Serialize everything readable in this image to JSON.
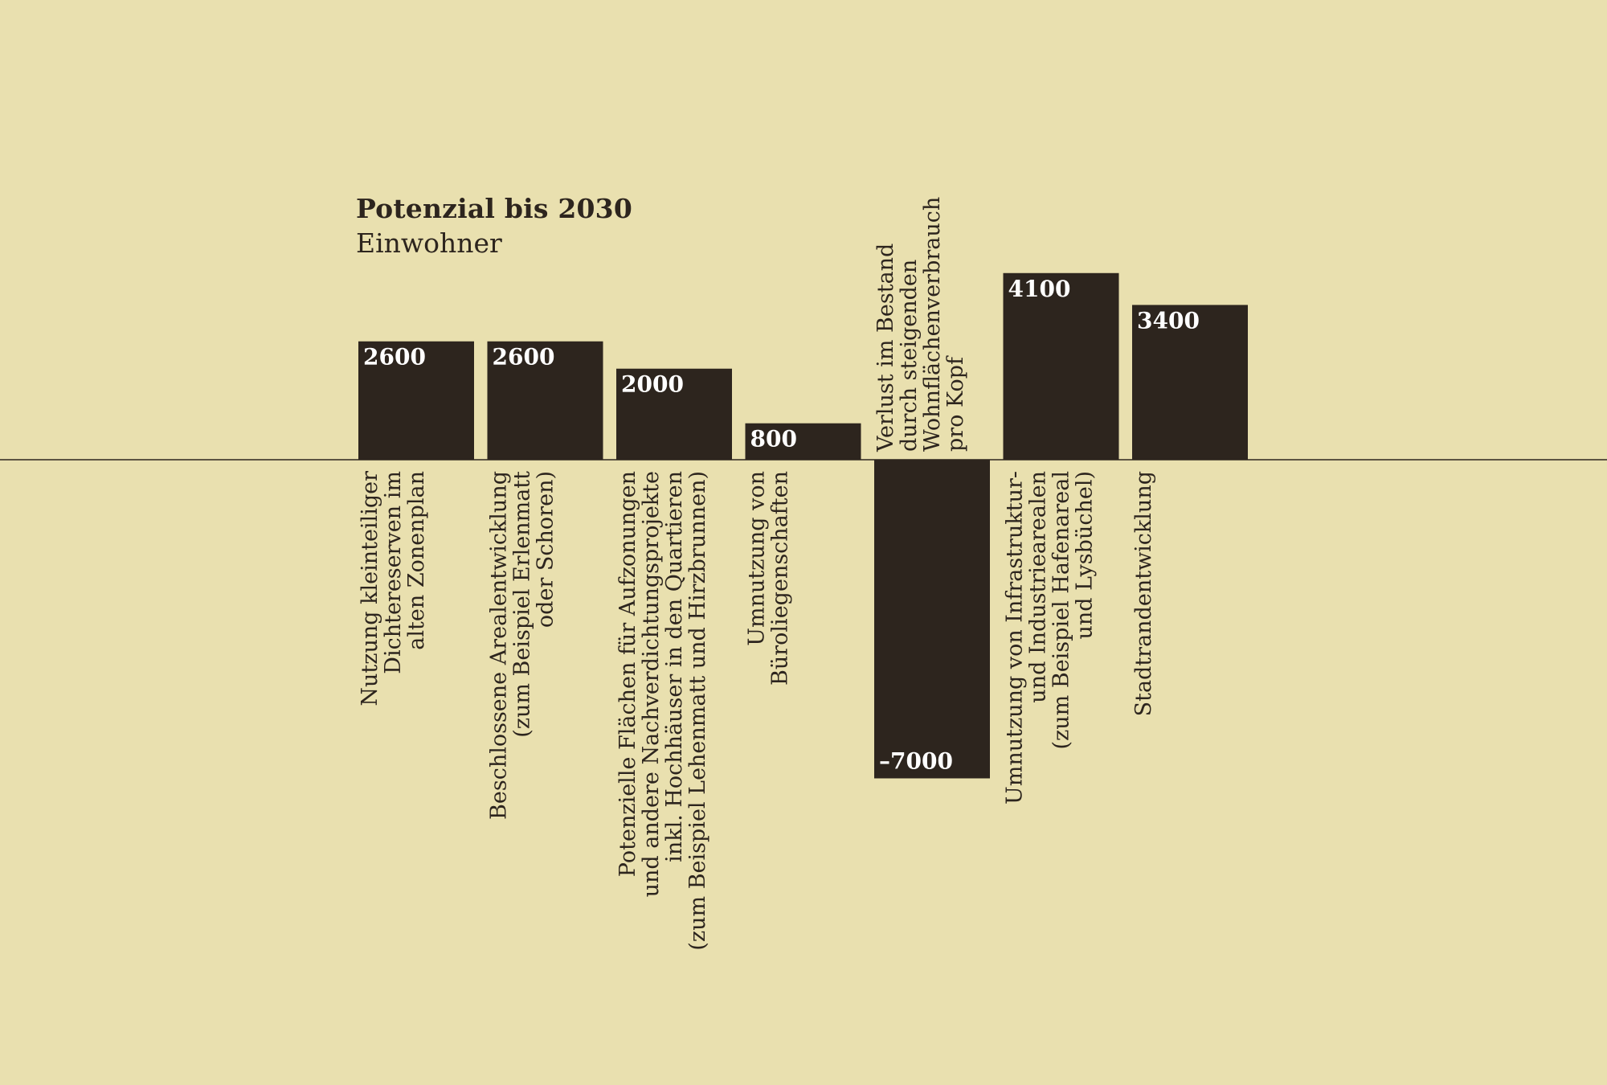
{
  "chart_data": {
    "type": "bar",
    "title": "Potenzial bis 2030",
    "subtitle": "Einwohner",
    "categories": [
      "Nutzung kleinteiliger\nDichtereserven im\nalten Zonenplan",
      "Beschlossene Arealentwicklung\n(zum Beispiel Erlenmatt\noder Schoren)",
      "Potenzielle Flächen für Aufzonungen\nund andere Nachverdichtungsprojekte\ninkl. Hochhäuser in den Quartieren\n(zum Beispiel Lehenmatt und Hirzbrunnen)",
      "Umnutzung von\nBüroliegenschaften",
      "Verlust im Bestand\ndurch steigenden\nWohnflächenverbrauch\npro Kopf",
      "Umnutzung von Infrastruktur-\nund Industriearealen\n(zum Beispiel Hafenareal\nund Lysbüchel)",
      "Stadtrandentwicklung"
    ],
    "values": [
      2600,
      2600,
      2000,
      800,
      -7000,
      4100,
      3400
    ],
    "value_labels": [
      "2600",
      "2600",
      "2000",
      "800",
      "–7000",
      "4100",
      "3400"
    ],
    "ylim": [
      -7000,
      4100
    ],
    "grid": false,
    "legend": "none",
    "colors": {
      "background": "#e9e0af",
      "bar": "#2d251e",
      "bar_label": "#ffffff",
      "text": "#2d251e"
    }
  }
}
